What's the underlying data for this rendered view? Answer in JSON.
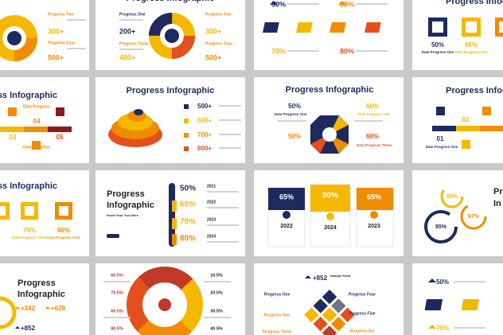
{
  "slides": [
    {
      "texts": [
        "Progress Two",
        "300+",
        "Progress Four",
        "500+"
      ]
    },
    {
      "texts": [
        "Progress Infographic",
        "Progress One",
        "200+",
        "Progress Three",
        "400+",
        "Progress Two",
        "300+",
        "Progress Four",
        "500+"
      ]
    },
    {
      "texts": [
        "50%",
        "60%",
        "70%",
        "80%"
      ]
    },
    {
      "texts": [
        "Progress Infographic",
        "50%",
        "Data Progress One",
        "66%",
        "Data Progress Two"
      ]
    },
    {
      "texts": [
        "ss Infographic",
        "Data Progress",
        "03",
        "04",
        "05",
        "Data Progress"
      ]
    },
    {
      "texts": [
        "Progress Infographic",
        "500+",
        "600+",
        "700+",
        "800+"
      ]
    },
    {
      "texts": [
        "Progress Infographic",
        "50%",
        "Data Progress One",
        "60%",
        "Data Progress Two",
        "50%",
        "60%",
        "Data Progress Three"
      ]
    },
    {
      "texts": [
        "Progress Infographic",
        "01",
        "02",
        "Data Progress One"
      ]
    },
    {
      "texts": [
        "ss Infographic",
        "70%",
        "80%",
        "Data Progress Three",
        "Data Progress Four"
      ]
    },
    {
      "texts": [
        "Progress",
        "Infographic",
        "Insert Your Text Here",
        "50%",
        "2021",
        "60%",
        "2022",
        "70%",
        "2023",
        "80%",
        "2024"
      ]
    },
    {
      "texts": [
        "65%",
        "80%",
        "65%",
        "2022",
        "2024",
        "2023"
      ]
    },
    {
      "texts": [
        "60%",
        "85%",
        "67%",
        "Pr",
        "In"
      ]
    },
    {
      "texts": [
        "Progress",
        "Infographic",
        "+342",
        "+628",
        "+852"
      ]
    },
    {
      "texts": [
        "60.5%",
        "70.5%",
        "60.5%",
        "80.5%",
        "10.5%",
        "20.5%",
        "30.5%",
        "40.5%"
      ]
    },
    {
      "texts": [
        "+852",
        "Sample Point",
        "Progress One",
        "Progress Four",
        "Progress Two",
        "Progress Five",
        "Progress Three",
        "Progress Six"
      ]
    },
    {
      "texts": [
        "50%",
        "70%"
      ]
    }
  ]
}
